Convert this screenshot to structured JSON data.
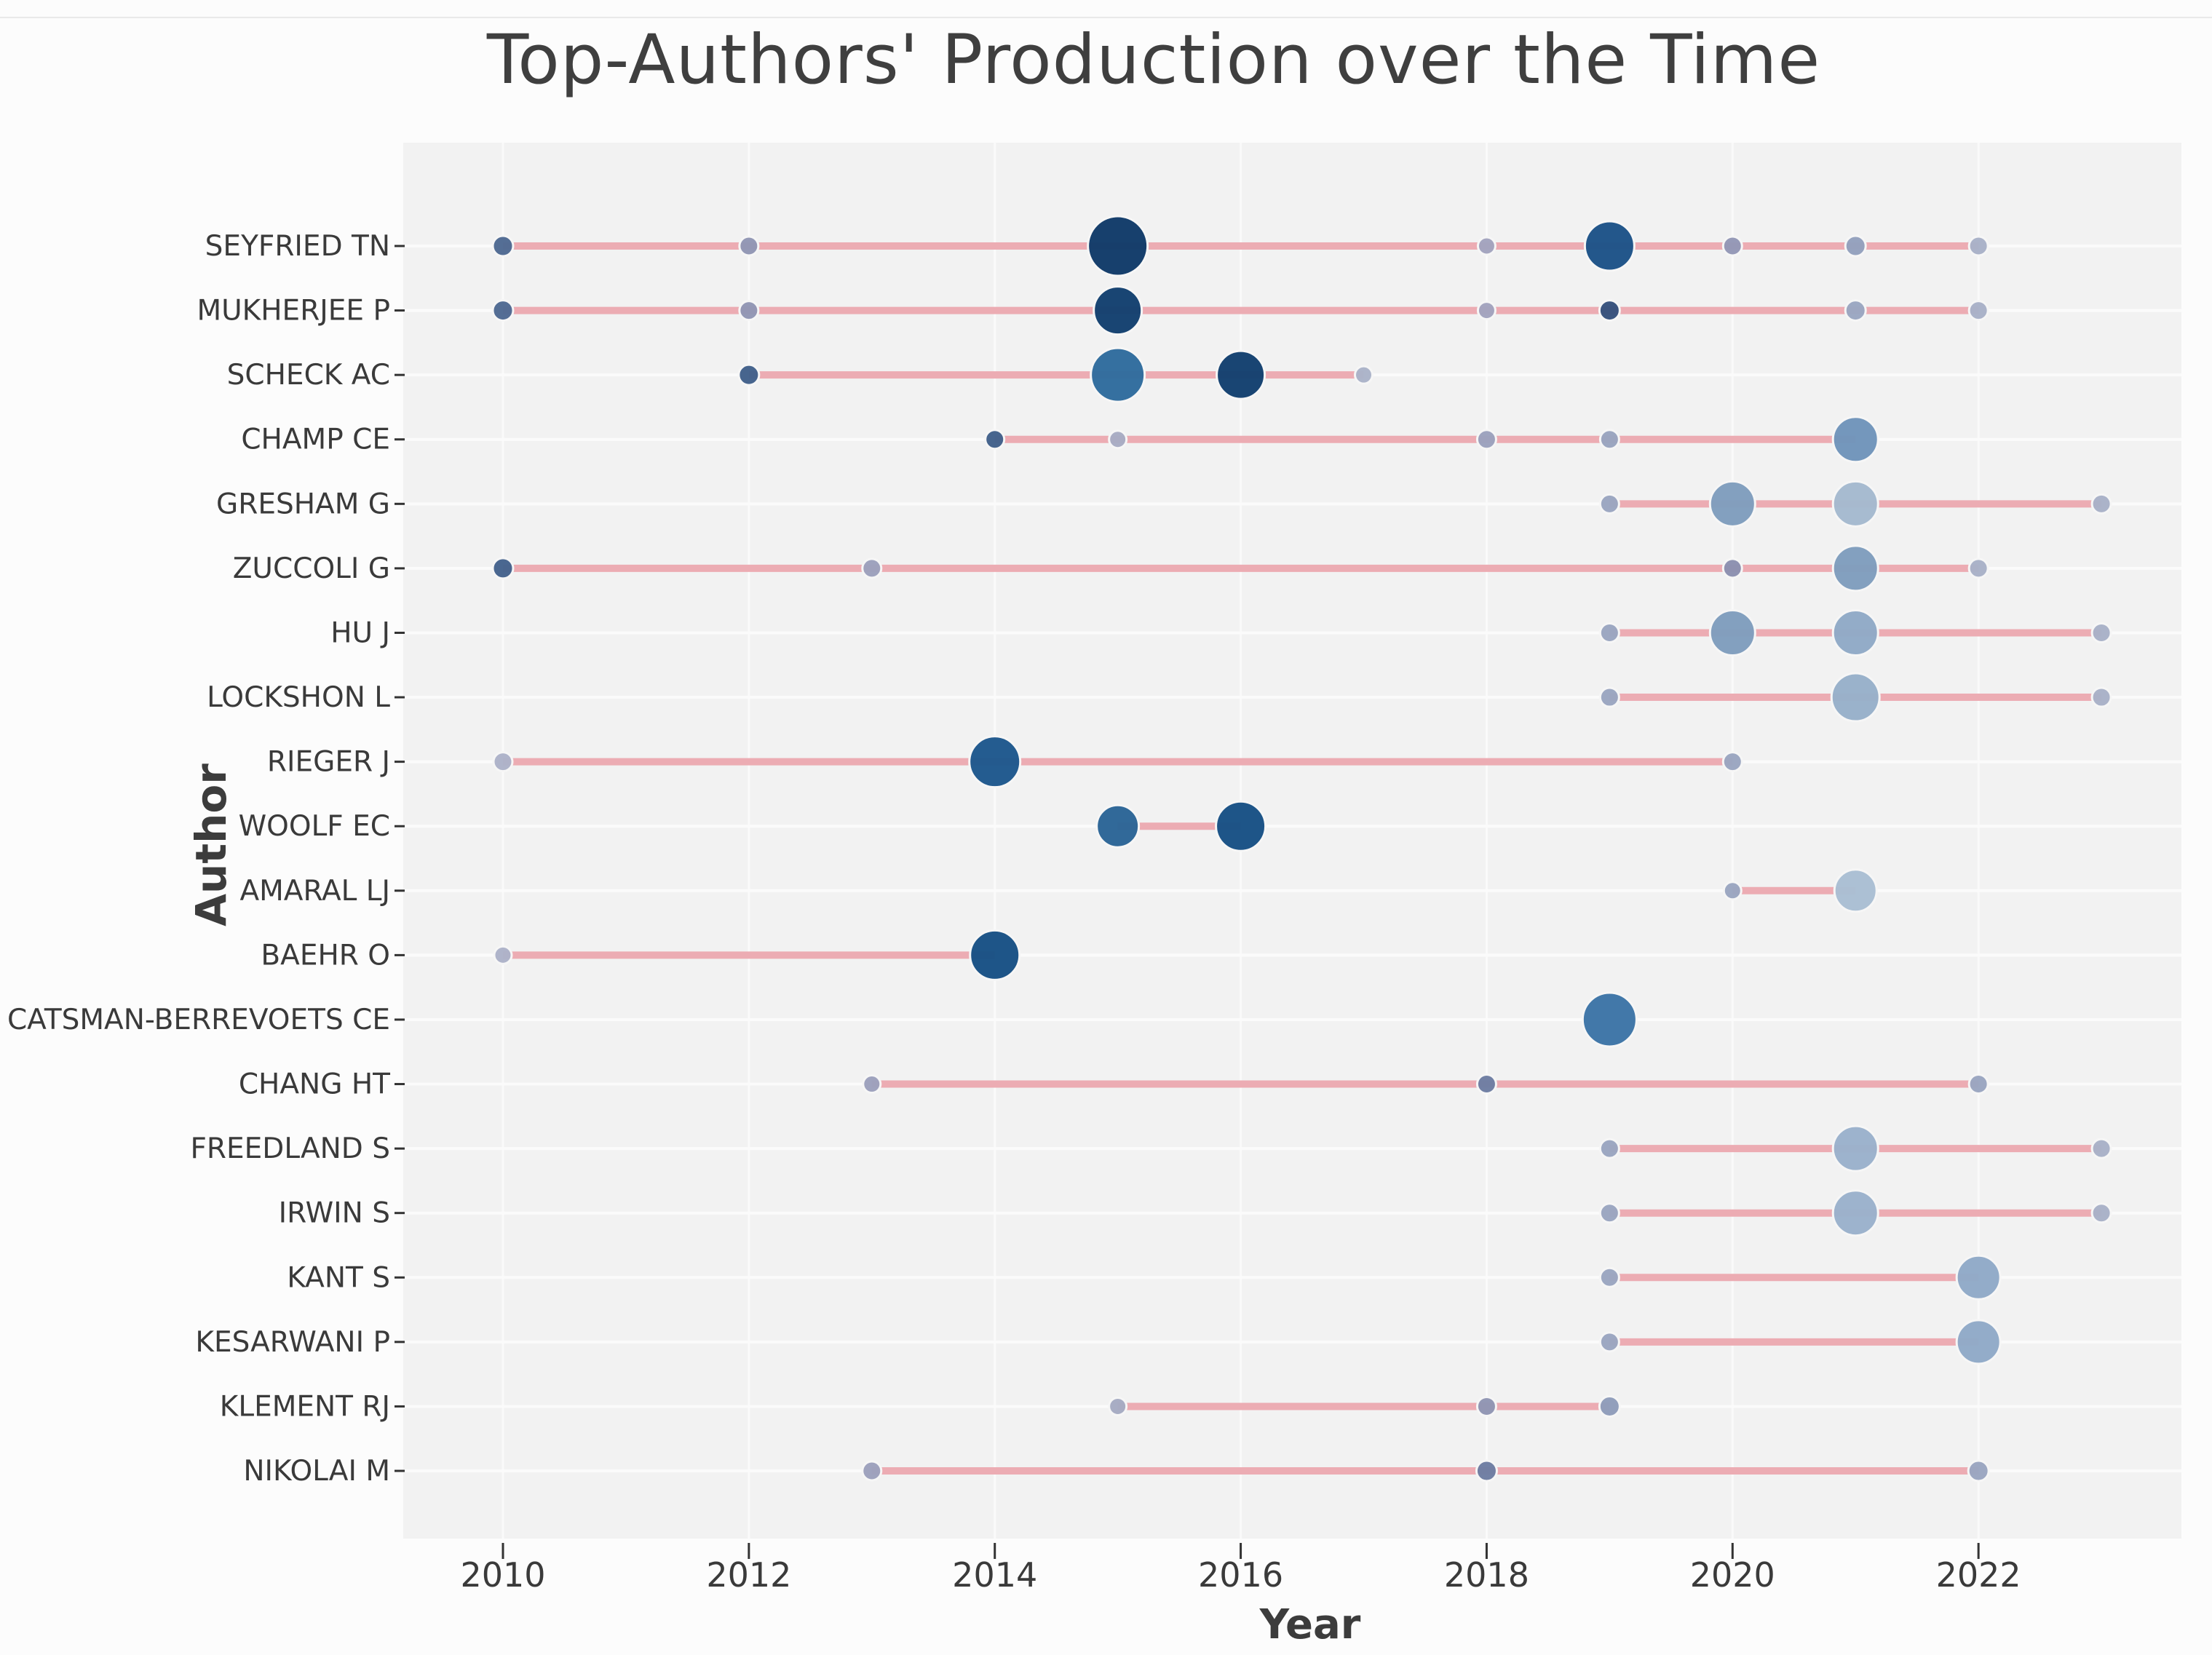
{
  "chart_data": {
    "type": "scatter",
    "subtype": "author-production-over-time-bubble-timeline",
    "title": "Top-Authors' Production over the Time",
    "xlabel": "Year",
    "ylabel": "Author",
    "x_ticks": [
      2010,
      2012,
      2014,
      2016,
      2018,
      2020,
      2022
    ],
    "x_range": [
      2009.2,
      2023.8
    ],
    "grid": true,
    "legend": "none",
    "encoding_note": "bubble size = articles in that year; darker blue = higher citations per year; pink line = first-to-last publication year span",
    "colors": {
      "plot_bg": "#f2f2f2",
      "gridline": "#fafafa",
      "row_line": "#fbfbfb",
      "timeline": "#ecacb3",
      "tick": "#333333",
      "text": "#3a3a3a",
      "title_text": "#3f3f3f"
    },
    "series": [
      {
        "author": "SEYFRIED TN",
        "line_span": [
          2010,
          2022
        ],
        "points": [
          {
            "year": 2010,
            "r": 14,
            "color": "#4e6992"
          },
          {
            "year": 2012,
            "r": 13,
            "color": "#9196b4"
          },
          {
            "year": 2015,
            "r": 41,
            "color": "#0f3a68"
          },
          {
            "year": 2018,
            "r": 12,
            "color": "#a2a3be"
          },
          {
            "year": 2019,
            "r": 34,
            "color": "#1c5287"
          },
          {
            "year": 2020,
            "r": 13,
            "color": "#9397b6"
          },
          {
            "year": 2021,
            "r": 14,
            "color": "#93a0bd"
          },
          {
            "year": 2022,
            "r": 13,
            "color": "#a8b1c7"
          }
        ]
      },
      {
        "author": "MUKHERJEE P",
        "line_span": [
          2010,
          2022
        ],
        "points": [
          {
            "year": 2010,
            "r": 14,
            "color": "#4e6992"
          },
          {
            "year": 2012,
            "r": 13,
            "color": "#9196b4"
          },
          {
            "year": 2015,
            "r": 33,
            "color": "#123f6e"
          },
          {
            "year": 2018,
            "r": 12,
            "color": "#a2a3be"
          },
          {
            "year": 2019,
            "r": 14,
            "color": "#35517c"
          },
          {
            "year": 2021,
            "r": 14,
            "color": "#9aa6c1"
          },
          {
            "year": 2022,
            "r": 13,
            "color": "#a8b1c7"
          }
        ]
      },
      {
        "author": "SCHECK AC",
        "line_span": [
          2012,
          2017
        ],
        "points": [
          {
            "year": 2012,
            "r": 14,
            "color": "#41608a"
          },
          {
            "year": 2015,
            "r": 37,
            "color": "#2e6b9d"
          },
          {
            "year": 2016,
            "r": 33,
            "color": "#123f6e"
          },
          {
            "year": 2017,
            "r": 12,
            "color": "#aab3c8"
          }
        ]
      },
      {
        "author": "CHAMP CE",
        "line_span": [
          2014,
          2021
        ],
        "points": [
          {
            "year": 2014,
            "r": 13,
            "color": "#41608a"
          },
          {
            "year": 2015,
            "r": 12,
            "color": "#a7abc3"
          },
          {
            "year": 2018,
            "r": 13,
            "color": "#9ba1bd"
          },
          {
            "year": 2019,
            "r": 13,
            "color": "#99a4bf"
          },
          {
            "year": 2021,
            "r": 31,
            "color": "#6f94ba"
          }
        ]
      },
      {
        "author": "GRESHAM G",
        "line_span": [
          2019,
          2023
        ],
        "points": [
          {
            "year": 2019,
            "r": 13,
            "color": "#9aa5c0"
          },
          {
            "year": 2020,
            "r": 31,
            "color": "#7f9dbd"
          },
          {
            "year": 2021,
            "r": 31,
            "color": "#a4b9ce"
          },
          {
            "year": 2023,
            "r": 13,
            "color": "#a8b1c7"
          }
        ]
      },
      {
        "author": "ZUCCOLI G",
        "line_span": [
          2010,
          2022
        ],
        "points": [
          {
            "year": 2010,
            "r": 14,
            "color": "#44628c"
          },
          {
            "year": 2013,
            "r": 13,
            "color": "#9ca0bc"
          },
          {
            "year": 2020,
            "r": 13,
            "color": "#8b90b0"
          },
          {
            "year": 2021,
            "r": 31,
            "color": "#7f9dbd"
          },
          {
            "year": 2022,
            "r": 13,
            "color": "#a8b1c7"
          }
        ]
      },
      {
        "author": "HU J",
        "line_span": [
          2019,
          2023
        ],
        "points": [
          {
            "year": 2019,
            "r": 13,
            "color": "#9aa5c0"
          },
          {
            "year": 2020,
            "r": 31,
            "color": "#7f9dbd"
          },
          {
            "year": 2021,
            "r": 31,
            "color": "#8fa9c6"
          },
          {
            "year": 2023,
            "r": 13,
            "color": "#a8b1c7"
          }
        ]
      },
      {
        "author": "LOCKSHON L",
        "line_span": [
          2019,
          2023
        ],
        "points": [
          {
            "year": 2019,
            "r": 13,
            "color": "#9aa5c0"
          },
          {
            "year": 2021,
            "r": 33,
            "color": "#97afc9"
          },
          {
            "year": 2023,
            "r": 13,
            "color": "#a8b1c7"
          }
        ]
      },
      {
        "author": "RIEGER J",
        "line_span": [
          2010,
          2020
        ],
        "points": [
          {
            "year": 2010,
            "r": 13,
            "color": "#acb2c8"
          },
          {
            "year": 2014,
            "r": 35,
            "color": "#1d578c"
          },
          {
            "year": 2020,
            "r": 13,
            "color": "#9aa5c0"
          }
        ]
      },
      {
        "author": "WOOLF EC",
        "line_span": [
          2015,
          2016
        ],
        "points": [
          {
            "year": 2015,
            "r": 29,
            "color": "#2a6496"
          },
          {
            "year": 2016,
            "r": 34,
            "color": "#175084"
          }
        ]
      },
      {
        "author": "AMARAL LJ",
        "line_span": [
          2020,
          2021
        ],
        "points": [
          {
            "year": 2020,
            "r": 12,
            "color": "#9aa5c0"
          },
          {
            "year": 2021,
            "r": 29,
            "color": "#a9bed3"
          }
        ]
      },
      {
        "author": "BAEHR O",
        "line_span": [
          2010,
          2014
        ],
        "points": [
          {
            "year": 2010,
            "r": 12,
            "color": "#acb2c8"
          },
          {
            "year": 2014,
            "r": 34,
            "color": "#175084"
          }
        ]
      },
      {
        "author": "CATSMAN-BERREVOETS CE",
        "line_span": null,
        "points": [
          {
            "year": 2019,
            "r": 37,
            "color": "#3c74a6"
          }
        ]
      },
      {
        "author": "CHANG HT",
        "line_span": [
          2013,
          2022
        ],
        "points": [
          {
            "year": 2013,
            "r": 12,
            "color": "#9ca0bc"
          },
          {
            "year": 2018,
            "r": 13,
            "color": "#6d7da2"
          },
          {
            "year": 2022,
            "r": 13,
            "color": "#9aa5c0"
          }
        ]
      },
      {
        "author": "FREEDLAND S",
        "line_span": [
          2019,
          2023
        ],
        "points": [
          {
            "year": 2019,
            "r": 13,
            "color": "#9aa5c0"
          },
          {
            "year": 2021,
            "r": 31,
            "color": "#9ab1cb"
          },
          {
            "year": 2023,
            "r": 13,
            "color": "#a8b1c7"
          }
        ]
      },
      {
        "author": "IRWIN S",
        "line_span": [
          2019,
          2023
        ],
        "points": [
          {
            "year": 2019,
            "r": 13,
            "color": "#9aa5c0"
          },
          {
            "year": 2021,
            "r": 31,
            "color": "#9ab1cb"
          },
          {
            "year": 2023,
            "r": 13,
            "color": "#a8b1c7"
          }
        ]
      },
      {
        "author": "KANT S",
        "line_span": [
          2019,
          2022
        ],
        "points": [
          {
            "year": 2019,
            "r": 13,
            "color": "#9aa5c0"
          },
          {
            "year": 2022,
            "r": 30,
            "color": "#8fa9c7"
          }
        ]
      },
      {
        "author": "KESARWANI P",
        "line_span": [
          2019,
          2022
        ],
        "points": [
          {
            "year": 2019,
            "r": 13,
            "color": "#9aa5c0"
          },
          {
            "year": 2022,
            "r": 30,
            "color": "#8fa9c7"
          }
        ]
      },
      {
        "author": "KLEMENT RJ",
        "line_span": [
          2015,
          2019
        ],
        "points": [
          {
            "year": 2015,
            "r": 12,
            "color": "#a5aac2"
          },
          {
            "year": 2018,
            "r": 13,
            "color": "#9095b3"
          },
          {
            "year": 2019,
            "r": 14,
            "color": "#8e9cba"
          }
        ]
      },
      {
        "author": "NIKOLAI M",
        "line_span": [
          2013,
          2022
        ],
        "points": [
          {
            "year": 2013,
            "r": 13,
            "color": "#9ca0bc"
          },
          {
            "year": 2018,
            "r": 14,
            "color": "#6d7da2"
          },
          {
            "year": 2022,
            "r": 14,
            "color": "#9aa5c0"
          }
        ]
      }
    ]
  }
}
